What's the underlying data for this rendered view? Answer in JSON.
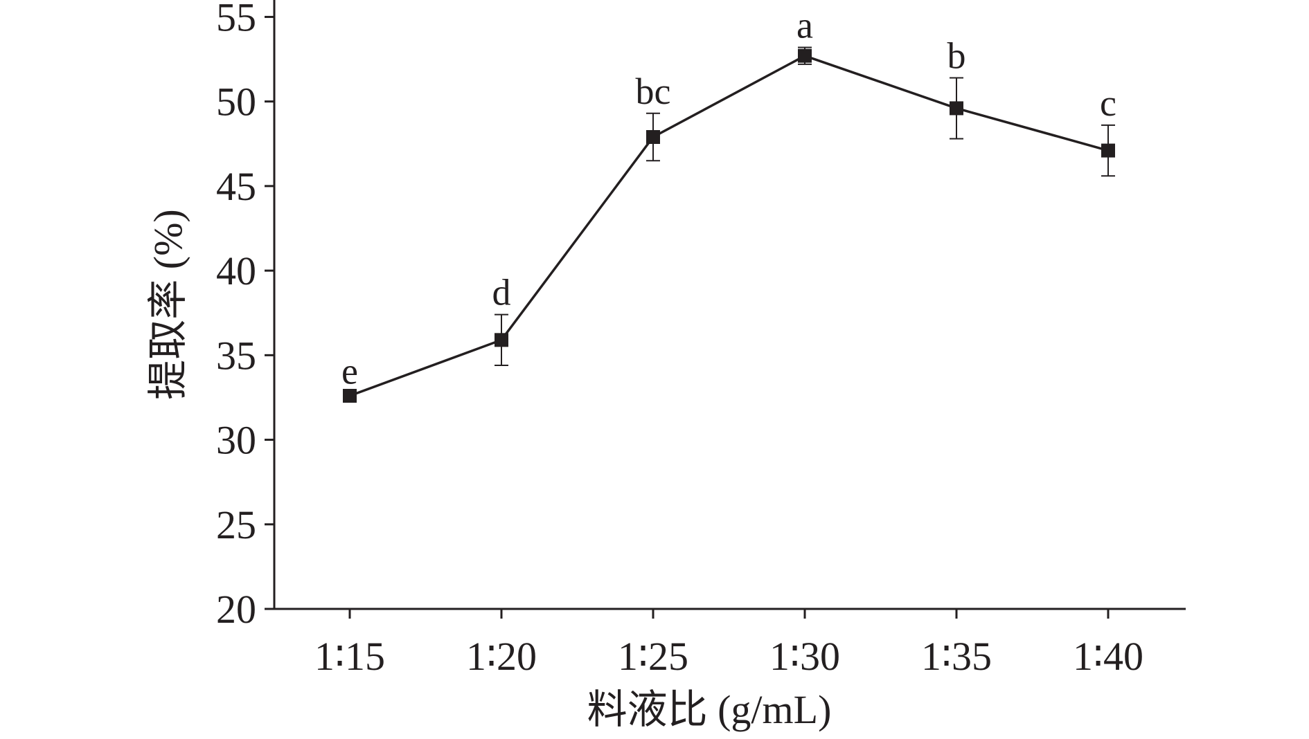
{
  "chart_data": {
    "type": "line",
    "title": "",
    "xlabel": "料液比 (g/mL)",
    "ylabel": "提取率 (%)",
    "categories": [
      "1∶15",
      "1∶20",
      "1∶25",
      "1∶30",
      "1∶35",
      "1∶40"
    ],
    "ylim": [
      20,
      56
    ],
    "yticks": [
      20,
      25,
      30,
      35,
      40,
      45,
      50,
      55
    ],
    "grid": false,
    "legend": "none",
    "series": [
      {
        "values": [
          32.6,
          35.9,
          47.9,
          52.7,
          49.6,
          47.1
        ],
        "errors": [
          0.15,
          1.5,
          1.4,
          0.5,
          1.8,
          1.5
        ],
        "significance_labels": [
          "e",
          "d",
          "bc",
          "a",
          "b",
          "c"
        ],
        "marker": "square",
        "color": "#231f20"
      }
    ]
  }
}
